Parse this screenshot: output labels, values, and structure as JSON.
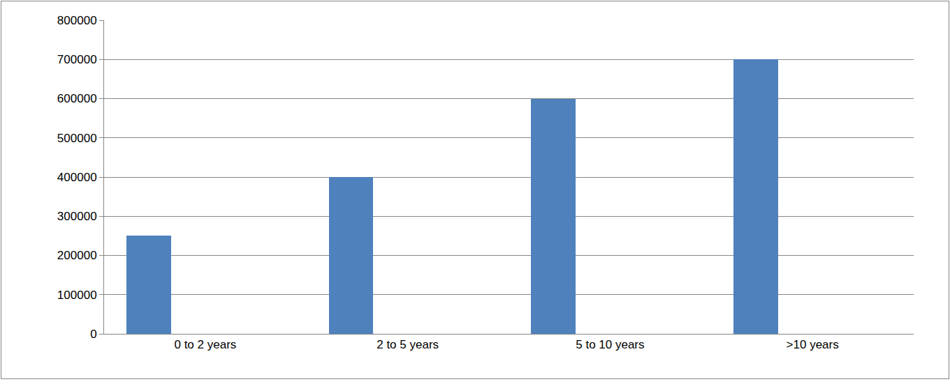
{
  "chart_data": {
    "type": "bar",
    "categories": [
      "0 to 2 years",
      "2 to 5 years",
      "5 to 10 years",
      ">10 years"
    ],
    "values": [
      250000,
      400000,
      600000,
      700000
    ],
    "color": "#4f81bd",
    "ylim": [
      0,
      800000
    ],
    "yticks": [
      0,
      100000,
      200000,
      300000,
      400000,
      500000,
      600000,
      700000,
      800000
    ],
    "grid": true
  }
}
